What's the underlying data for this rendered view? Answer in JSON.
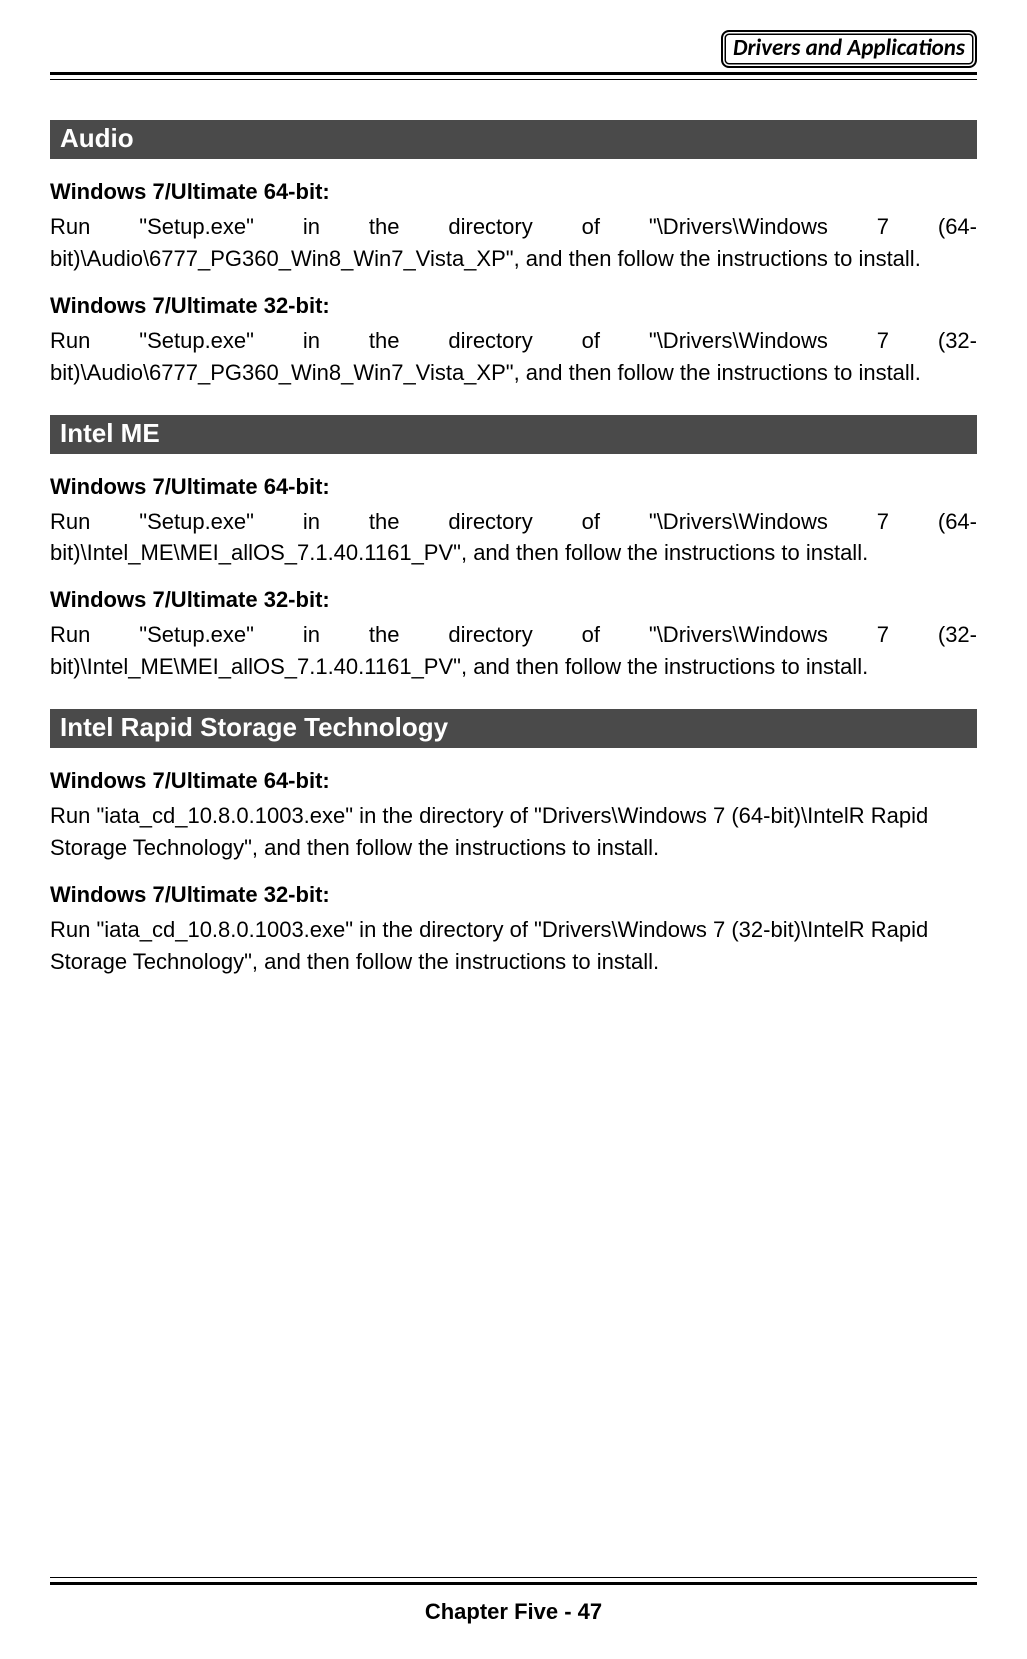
{
  "header": {
    "title": "Drivers and Applications"
  },
  "sections": [
    {
      "title": "Audio",
      "blocks": [
        {
          "heading": "Windows 7/Ultimate 64-bit:",
          "text": "Run \"Setup.exe\" in the directory of \"\\Drivers\\Windows 7 (64-bit)\\Audio\\6777_PG360_Win8_Win7_Vista_XP\", and then follow the instructions to install.",
          "justify": true
        },
        {
          "heading": "Windows 7/Ultimate 32-bit:",
          "text": "Run \"Setup.exe\" in the directory of \"\\Drivers\\Windows 7 (32-bit)\\Audio\\6777_PG360_Win8_Win7_Vista_XP\", and then follow the instructions to install.",
          "justify": true
        }
      ]
    },
    {
      "title": "Intel ME",
      "blocks": [
        {
          "heading": "Windows 7/Ultimate 64-bit:",
          "text": "Run \"Setup.exe\" in the directory of \"\\Drivers\\Windows 7 (64-bit)\\Intel_ME\\MEI_allOS_7.1.40.1161_PV\", and then follow the instructions to install.",
          "justify": true
        },
        {
          "heading": "Windows 7/Ultimate 32-bit:",
          "text": "Run \"Setup.exe\" in the directory of \"\\Drivers\\Windows 7 (32-bit)\\Intel_ME\\MEI_allOS_7.1.40.1161_PV\", and then follow the instructions to install.",
          "justify": true
        }
      ]
    },
    {
      "title": "Intel Rapid Storage Technology",
      "blocks": [
        {
          "heading": "Windows 7/Ultimate 64-bit:",
          "text": "Run \"iata_cd_10.8.0.1003.exe\" in the directory of \"Drivers\\Windows 7 (64-bit)\\IntelR Rapid Storage Technology\", and then follow the instructions to install.",
          "justify": false
        },
        {
          "heading": "Windows 7/Ultimate 32-bit:",
          "text": "Run \"iata_cd_10.8.0.1003.exe\" in the directory of \"Drivers\\Windows 7 (32-bit)\\IntelR Rapid Storage Technology\", and then follow the instructions to install.",
          "justify": false
        }
      ]
    }
  ],
  "footer": {
    "text": "Chapter Five - 47"
  },
  "colors": {
    "section_header_bg": "#4a4a4a",
    "section_header_fg": "#ffffff",
    "page_bg": "#ffffff",
    "text": "#000000",
    "rule": "#000000"
  },
  "typography": {
    "body_fontsize_pt": 16,
    "heading_fontsize_pt": 16,
    "section_header_fontsize_pt": 19,
    "header_box_fontsize_pt": 17,
    "footer_fontsize_pt": 16,
    "font_family": "Arial"
  }
}
